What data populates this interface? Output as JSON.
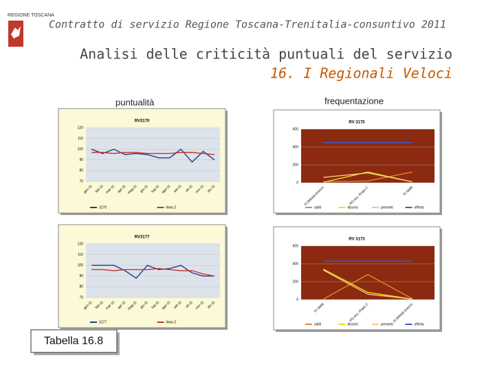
{
  "logo": "REGIONE TOSCANA",
  "header": "Contratto di servizio Regione Toscana-Trenitalia-consuntivo 2011",
  "title": "Analisi delle criticità puntuali del servizio",
  "subtitle": "16. I Regionali Veloci",
  "left_label": "puntualità",
  "right_label": "frequentazione",
  "table_label": "Tabella 16.8",
  "chart_data": [
    {
      "type": "line",
      "title": "RV3170",
      "plot_color": "#dde3ea",
      "background": "#fbf9d6",
      "categories": [
        "gen-11",
        "feb-11",
        "mar-11",
        "apr-11",
        "mag-11",
        "giu-11",
        "lug-11",
        "ago-11",
        "set-11",
        "ott-11",
        "nov-11",
        "dic-11"
      ],
      "ylim": [
        70,
        120
      ],
      "yticks": [
        70,
        80,
        90,
        100,
        110,
        120
      ],
      "series": [
        {
          "name": "3170",
          "color": "#1f3a93",
          "values": [
            100,
            96,
            100,
            95,
            96,
            95,
            92,
            92,
            100,
            88,
            98,
            90
          ]
        },
        {
          "name": "linea 2",
          "color": "#c0392b",
          "values": [
            97,
            97,
            96,
            97,
            97,
            96,
            96,
            96,
            97,
            97,
            96,
            95
          ]
        }
      ]
    },
    {
      "type": "line",
      "title": "RV 3170",
      "plot_color": "#8b2a10",
      "background": "#ffffff",
      "categories": [
        "FI.Rifredi-Arezzo",
        "PO.Arc.-Prato C",
        "FI.SMN"
      ],
      "ylim": [
        0,
        600
      ],
      "yticks": [
        0,
        200,
        400,
        600
      ],
      "series": [
        {
          "name": "saliti",
          "color": "#e8842a",
          "values": [
            10,
            20,
            120
          ]
        },
        {
          "name": "discesi",
          "color": "#f2e200",
          "values": [
            5,
            120,
            10
          ]
        },
        {
          "name": "presenti",
          "color": "#f6c48a",
          "values": [
            60,
            110,
            10
          ]
        },
        {
          "name": "offerta",
          "color": "#3a5bd9",
          "values": [
            450,
            450,
            450
          ]
        }
      ]
    },
    {
      "type": "line",
      "title": "RV3177",
      "plot_color": "#dde3ea",
      "background": "#fbf9d6",
      "categories": [
        "gen-11",
        "feb-11",
        "mar-11",
        "apr-11",
        "mag-11",
        "giu-11",
        "lug-11",
        "ago-11",
        "set-11",
        "ott-11",
        "nov-11",
        "dic-11"
      ],
      "ylim": [
        70,
        120
      ],
      "yticks": [
        70,
        80,
        90,
        100,
        110,
        120
      ],
      "series": [
        {
          "name": "3177",
          "color": "#1f3a93",
          "values": [
            100,
            100,
            100,
            95,
            88,
            100,
            96,
            97,
            100,
            93,
            90,
            90
          ]
        },
        {
          "name": "linea 2",
          "color": "#c0392b",
          "values": [
            96,
            96,
            95,
            96,
            96,
            96,
            97,
            96,
            95,
            95,
            92,
            90
          ]
        }
      ]
    },
    {
      "type": "line",
      "title": "RV 3173",
      "plot_color": "#8b2a10",
      "background": "#ffffff",
      "categories": [
        "FI.SMN",
        "PO.Arc.-Prato C",
        "FI.Rifredi-Arezzo"
      ],
      "ylim": [
        0,
        600
      ],
      "yticks": [
        0,
        200,
        400,
        600
      ],
      "series": [
        {
          "name": "saliti",
          "color": "#e8842a",
          "values": [
            5,
            280,
            10
          ]
        },
        {
          "name": "discesi",
          "color": "#f2e200",
          "values": [
            340,
            80,
            5
          ]
        },
        {
          "name": "presenti",
          "color": "#f6c48a",
          "values": [
            330,
            60,
            5
          ]
        },
        {
          "name": "offerta",
          "color": "#3a5bd9",
          "values": [
            430,
            430,
            430
          ]
        }
      ]
    }
  ]
}
